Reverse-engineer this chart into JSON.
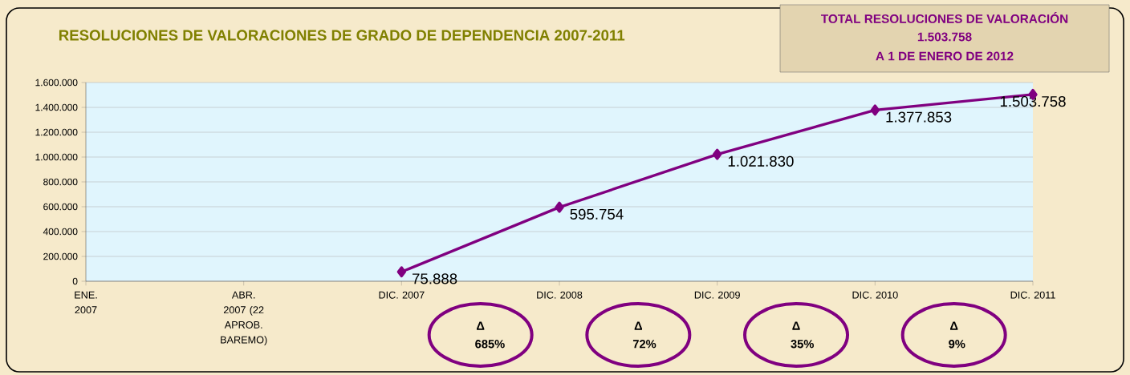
{
  "chart_data": {
    "type": "line",
    "title": "RESOLUCIONES DE VALORACIONES DE GRADO DE DEPENDENCIA 2007-2011",
    "categories": [
      "ENE. 2007",
      "ABR. 2007 (22 APROB. BAREMO)",
      "DIC. 2007",
      "DIC. 2008",
      "DIC. 2009",
      "DIC. 2010",
      "DIC. 2011"
    ],
    "series": [
      {
        "color": "#800080",
        "values": [
          null,
          null,
          75888,
          595754,
          1021830,
          1377853,
          1503758
        ],
        "value_labels": [
          null,
          null,
          "75.888",
          "595.754",
          "1.021.830",
          "1.377.853",
          "1.503.758"
        ]
      }
    ],
    "ylim": [
      0,
      1600000
    ],
    "yticks": [
      {
        "value": 0,
        "label": "0"
      },
      {
        "value": 200000,
        "label": "200.000"
      },
      {
        "value": 400000,
        "label": "400.000"
      },
      {
        "value": 600000,
        "label": "600.000"
      },
      {
        "value": 800000,
        "label": "800.000"
      },
      {
        "value": 1000000,
        "label": "1.000.000"
      },
      {
        "value": 1200000,
        "label": "1.200.000"
      },
      {
        "value": 1400000,
        "label": "1.400.000"
      },
      {
        "value": 1600000,
        "label": "1.600.000"
      }
    ],
    "grid": "y",
    "marker": "diamond",
    "line_style": "solid",
    "annotations": [
      "TOTAL RESOLUCIONES DE VALORACIÓN",
      "1.503.758",
      "A 1 DE ENERO DE 2012",
      "Δ 685%",
      "Δ 72%",
      "Δ 35%",
      "Δ 9%"
    ]
  }
}
